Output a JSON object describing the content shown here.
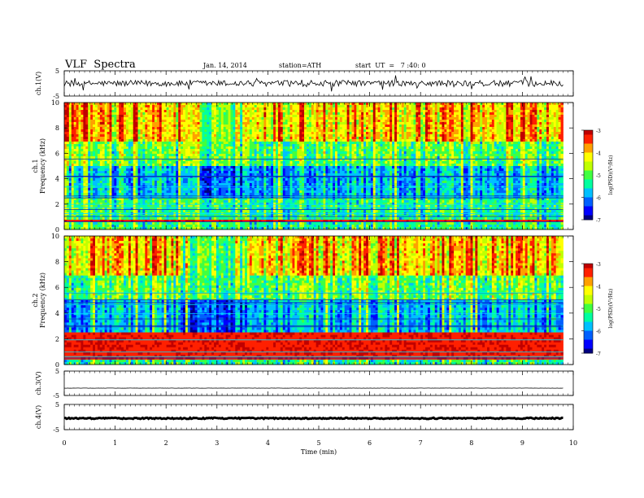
{
  "header": {
    "title": "VLF  Spectra",
    "date": "Jan. 14, 2014",
    "station": "station=ATH",
    "start": "start  UT  =   7 :40: 0"
  },
  "chart_data": {
    "type": "heatmap",
    "xlabel": "Time  (min)",
    "xlim": [
      0,
      10
    ],
    "x_ticks": [
      "0",
      "1",
      "2",
      "3",
      "4",
      "5",
      "6",
      "7",
      "8",
      "9",
      "10"
    ],
    "data_end_min": 9.8,
    "panels": [
      {
        "id": "ch1-voltage",
        "type": "line",
        "ylabel": "ch.1(V)",
        "ylim": [
          -5,
          5
        ],
        "y_ticks": [
          "5",
          "-5"
        ],
        "baseline": 0,
        "noise_amp": 1.2
      },
      {
        "id": "ch1-spectrogram",
        "type": "heatmap",
        "ylabel": "ch.1\nFrequency  (kHz)",
        "ylim": [
          0,
          10
        ],
        "y_ticks": [
          "10",
          "8",
          "6",
          "4",
          "2",
          "0"
        ],
        "colorbar": {
          "label": "log(PSD)(V²/Hz)",
          "range": [
            -7,
            -3
          ],
          "ticks": [
            "-3",
            "-4",
            "-5",
            "-6",
            "-7"
          ]
        },
        "strong_band_khz": [
          0.5,
          0.8
        ],
        "quiet_interval_min": [
          2.3,
          3.6
        ]
      },
      {
        "id": "ch2-spectrogram",
        "type": "heatmap",
        "ylabel": "ch.2\nFrequency  (kHz)",
        "ylim": [
          0,
          10
        ],
        "y_ticks": [
          "10",
          "8",
          "6",
          "4",
          "2",
          "0"
        ],
        "colorbar": {
          "label": "log(PSD)(V²/Hz)",
          "range": [
            -7,
            -3
          ],
          "ticks": [
            "-3",
            "-4",
            "-5",
            "-6",
            "-7"
          ]
        },
        "strong_band_khz": [
          0.3,
          2.5
        ],
        "quiet_interval_min": [
          2.3,
          3.6
        ]
      },
      {
        "id": "ch3-voltage",
        "type": "line",
        "ylabel": "ch.3(V)",
        "ylim": [
          -5,
          5
        ],
        "y_ticks": [
          "5",
          "-5"
        ],
        "baseline": -2,
        "noise_amp": 0.05
      },
      {
        "id": "ch4-voltage",
        "type": "line",
        "ylabel": "ch.4(V)",
        "ylim": [
          -5,
          5
        ],
        "y_ticks": [
          "5",
          "-5"
        ],
        "baseline": -0.5,
        "noise_amp": 0.25
      }
    ],
    "colors": [
      "#000080",
      "#0000ff",
      "#0060ff",
      "#00c0ff",
      "#00ffa0",
      "#40ff40",
      "#c0ff00",
      "#ffff00",
      "#ffa000",
      "#ff2000",
      "#c00000"
    ]
  }
}
